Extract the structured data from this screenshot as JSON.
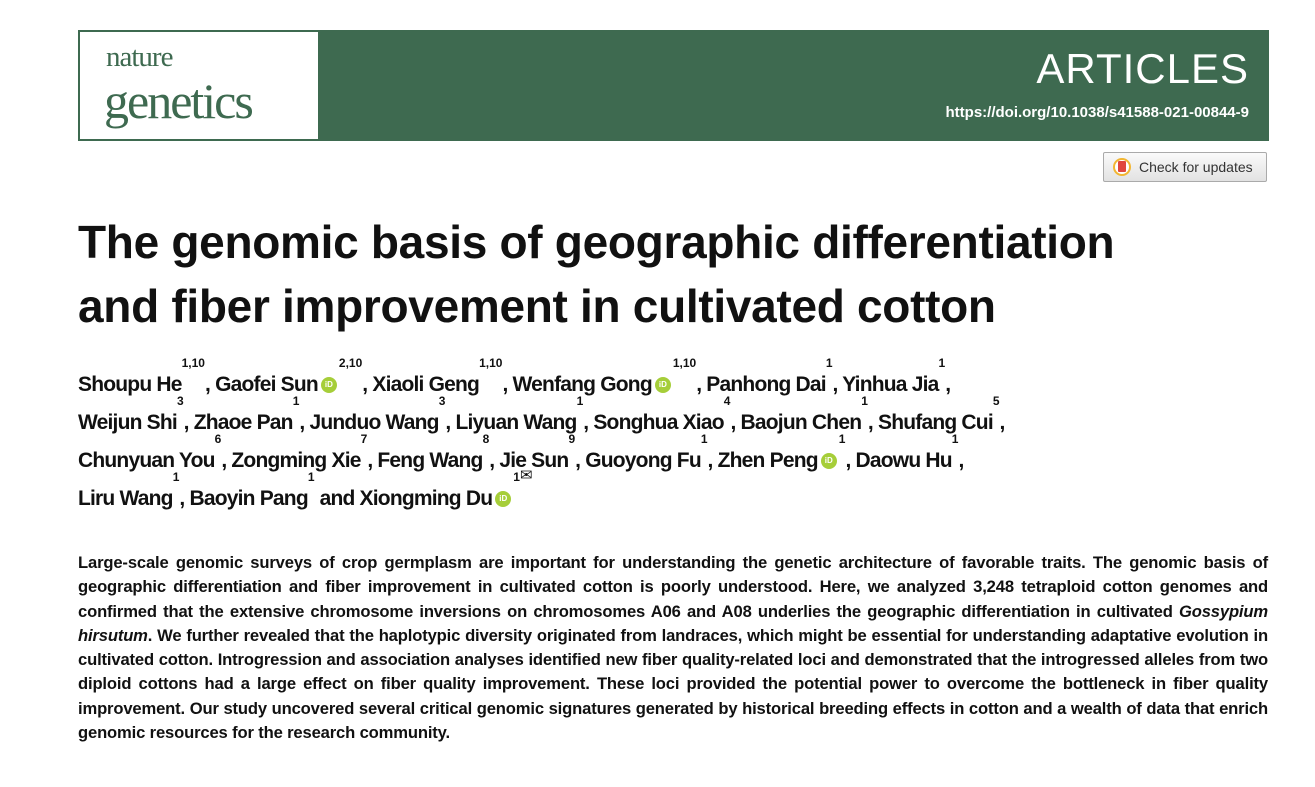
{
  "journal": {
    "logo_line1": "nature",
    "logo_line2": "genetics",
    "section": "ARTICLES",
    "doi": "https://doi.org/10.1038/s41588-021-00844-9",
    "brand_color": "#3e6a50"
  },
  "check_updates": {
    "label": "Check for updates",
    "icon": "crossmark-icon"
  },
  "title": {
    "line1": "The genomic basis of geographic differentiation",
    "line2": "and fiber improvement in cultivated cotton"
  },
  "authors": [
    {
      "name": "Shoupu He",
      "sup": "1,10",
      "orcid": false,
      "sep": ", "
    },
    {
      "name": "Gaofei Sun",
      "sup": "2,10",
      "orcid": true,
      "sep": ", "
    },
    {
      "name": "Xiaoli Geng",
      "sup": "1,10",
      "orcid": false,
      "sep": ", "
    },
    {
      "name": "Wenfang Gong",
      "sup": "1,10",
      "orcid": true,
      "sep": ", "
    },
    {
      "name": "Panhong Dai",
      "sup": "1",
      "orcid": false,
      "sep": ", "
    },
    {
      "name": "Yinhua Jia",
      "sup": "1",
      "orcid": false,
      "sep": ", ",
      "br": true
    },
    {
      "name": "Weijun Shi",
      "sup": "3",
      "orcid": false,
      "sep": ", "
    },
    {
      "name": "Zhaoe Pan",
      "sup": "1",
      "orcid": false,
      "sep": ", "
    },
    {
      "name": "Junduo Wang",
      "sup": "3",
      "orcid": false,
      "sep": ", "
    },
    {
      "name": "Liyuan Wang",
      "sup": "1",
      "orcid": false,
      "sep": ", "
    },
    {
      "name": "Songhua Xiao",
      "sup": "4",
      "orcid": false,
      "sep": ", "
    },
    {
      "name": "Baojun Chen",
      "sup": "1",
      "orcid": false,
      "sep": ", "
    },
    {
      "name": "Shufang Cui",
      "sup": "5",
      "orcid": false,
      "sep": ", ",
      "br": true
    },
    {
      "name": "Chunyuan You",
      "sup": "6",
      "orcid": false,
      "sep": ", "
    },
    {
      "name": "Zongming Xie",
      "sup": "7",
      "orcid": false,
      "sep": ", "
    },
    {
      "name": "Feng Wang",
      "sup": "8",
      "orcid": false,
      "sep": ", "
    },
    {
      "name": "Jie Sun",
      "sup": "9",
      "orcid": false,
      "sep": ", "
    },
    {
      "name": "Guoyong Fu",
      "sup": "1",
      "orcid": false,
      "sep": ", "
    },
    {
      "name": "Zhen Peng",
      "sup": "1",
      "orcid": true,
      "sep": ", "
    },
    {
      "name": "Daowu Hu",
      "sup": "1",
      "orcid": false,
      "sep": ", ",
      "br": true
    },
    {
      "name": "Liru Wang",
      "sup": "1",
      "orcid": false,
      "sep": ", "
    },
    {
      "name": "Baoyin Pang",
      "sup": "1",
      "orcid": false,
      "sep": " and "
    },
    {
      "name": "Xiongming Du",
      "sup": "1",
      "orcid": true,
      "sep": "",
      "corresponding": true
    }
  ],
  "orcid_label": "iD",
  "mail_icon": "✉",
  "abstract": {
    "part1": "Large-scale genomic surveys of crop germplasm are important for understanding the genetic architecture of favorable traits. The genomic basis of geographic differentiation and fiber improvement in cultivated cotton is poorly understood. Here, we analyzed 3,248 tetraploid cotton genomes and confirmed that the extensive chromosome inversions on chromosomes A06 and A08 underlies the geographic differentiation in cultivated ",
    "italic": "Gossypium hirsutum",
    "part2": ". We further revealed that the haplotypic diversity originated from landraces, which might be essential for understanding adaptative evolution in cultivated cotton. Introgression and association analyses identified new fiber quality-related loci and demonstrated that the introgressed alleles from two diploid cottons had a large effect on fiber quality improvement. These loci provided the potential power to overcome the bottleneck in fiber quality improvement. Our study uncovered several critical genomic signatures generated by historical breeding effects in cotton and a wealth of data that enrich genomic resources for the research community."
  }
}
